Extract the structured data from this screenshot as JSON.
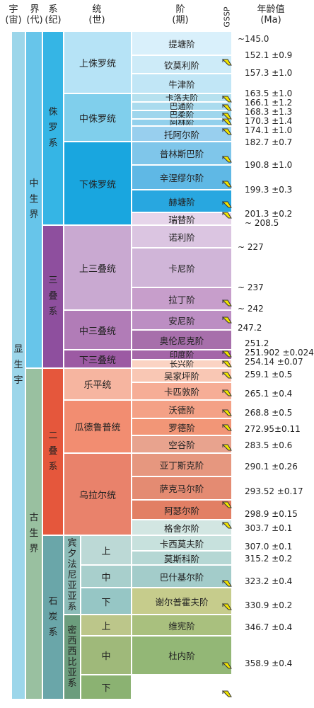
{
  "header": {
    "eonothem": {
      "l1": "宇",
      "l2": "(宙)"
    },
    "erathem": {
      "l1": "界",
      "l2": "(代)"
    },
    "system": {
      "l1": "系",
      "l2": "(纪)"
    },
    "series": {
      "l1": "统",
      "l2": "(世)"
    },
    "stage": {
      "l1": "阶",
      "l2": "(期)"
    },
    "gssp": "GSSP",
    "age": {
      "l1": "年龄值",
      "l2": "(Ma)"
    }
  },
  "eon": {
    "label": "显生宇",
    "color": "#9cd6ea"
  },
  "eras": [
    {
      "id": "mesozoic",
      "label": "中生界",
      "color": "#67c5ea"
    },
    {
      "id": "paleozoic",
      "label": "古生界",
      "color": "#99c0a0"
    }
  ],
  "systems": [
    {
      "id": "jurassic",
      "label": "侏罗系",
      "color": "#35b5e5"
    },
    {
      "id": "triassic",
      "label": "三叠系",
      "color": "#8e4f9e"
    },
    {
      "id": "permian",
      "label": "二叠系",
      "color": "#e5573c"
    },
    {
      "id": "carboniferous",
      "label": "石炭系",
      "color": "#6aa6a9"
    }
  ],
  "subsystems": [
    {
      "id": "pennsylvanian",
      "label": "宾夕法尼亚亚系",
      "color": "#8cbcb8"
    },
    {
      "id": "mississippian",
      "label": "密西西比亚系",
      "color": "#6c9d7d"
    }
  ],
  "series": [
    {
      "id": "upper-jurassic",
      "label": "上侏罗统",
      "color": "#b6e3f6"
    },
    {
      "id": "middle-jurassic",
      "label": "中侏罗统",
      "color": "#80cfec"
    },
    {
      "id": "lower-jurassic",
      "label": "下侏罗统",
      "color": "#19a6df"
    },
    {
      "id": "upper-triassic",
      "label": "上三叠统",
      "color": "#c9a9d1"
    },
    {
      "id": "middle-triassic",
      "label": "中三叠统",
      "color": "#b17cb7"
    },
    {
      "id": "lower-triassic",
      "label": "下三叠统",
      "color": "#9c5aa3"
    },
    {
      "id": "lopingian",
      "label": "乐平统",
      "color": "#f6b5a0"
    },
    {
      "id": "guadalupian",
      "label": "瓜德鲁普统",
      "color": "#f28d71"
    },
    {
      "id": "cisuralian",
      "label": "乌拉尔统",
      "color": "#e9826b"
    },
    {
      "id": "upper-penn",
      "label": "上",
      "color": "#bcd9d6"
    },
    {
      "id": "middle-penn",
      "label": "中",
      "color": "#a8cfcc"
    },
    {
      "id": "lower-penn",
      "label": "下",
      "color": "#96c6c5"
    },
    {
      "id": "upper-miss",
      "label": "上",
      "color": "#bcc68a"
    },
    {
      "id": "middle-miss",
      "label": "中",
      "color": "#9fb97a"
    },
    {
      "id": "lower-miss",
      "label": "下",
      "color": "#8bb272"
    }
  ],
  "stages": [
    {
      "label": "提塘阶",
      "color": "#d9f0fb"
    },
    {
      "label": "钦莫利阶",
      "color": "#cdebf8"
    },
    {
      "label": "牛津阶",
      "color": "#c1e6f6"
    },
    {
      "label": "卡洛夫阶",
      "color": "#b6e1ef"
    },
    {
      "label": "巴通阶",
      "color": "#aadbee"
    },
    {
      "label": "巴柔阶",
      "color": "#9ed6ed"
    },
    {
      "label": "阿林阶",
      "color": "#92d0ec"
    },
    {
      "label": "托阿尔阶",
      "color": "#98cfee"
    },
    {
      "label": "普林斯巴阶",
      "color": "#7fc6ea"
    },
    {
      "label": "辛涅缪尔阶",
      "color": "#5fb8e5"
    },
    {
      "label": "赫塘阶",
      "color": "#28a7e0"
    },
    {
      "label": "瑞替阶",
      "color": "#e6d5ea"
    },
    {
      "label": "诺利阶",
      "color": "#dbc5e1"
    },
    {
      "label": "卡尼阶",
      "color": "#d0b5d8"
    },
    {
      "label": "拉丁阶",
      "color": "#c79ecb"
    },
    {
      "label": "安尼阶",
      "color": "#bc8ec3"
    },
    {
      "label": "奥伦尼克阶",
      "color": "#a76fab"
    },
    {
      "label": "印度阶",
      "color": "#a466a8"
    },
    {
      "label": "长兴阶",
      "color": "#fbd3c3"
    },
    {
      "label": "吴家坪阶",
      "color": "#f9c7b4"
    },
    {
      "label": "卡匹敦阶",
      "color": "#f6ad96"
    },
    {
      "label": "沃德阶",
      "color": "#f4a186"
    },
    {
      "label": "罗德阶",
      "color": "#f29677"
    },
    {
      "label": "空谷阶",
      "color": "#e8a38e"
    },
    {
      "label": "亚丁斯克阶",
      "color": "#e6977f"
    },
    {
      "label": "萨克马尔阶",
      "color": "#e48b72"
    },
    {
      "label": "阿瑟尔阶",
      "color": "#e27f64"
    },
    {
      "label": "格舍尔阶",
      "color": "#d2e6e2"
    },
    {
      "label": "卡西莫夫阶",
      "color": "#c7e1dd"
    },
    {
      "label": "莫斯科阶",
      "color": "#b5d7d4"
    },
    {
      "label": "巴什基尔阶",
      "color": "#a3ccca"
    },
    {
      "label": "谢尔普霍夫阶",
      "color": "#c6cc8c"
    },
    {
      "label": "维宪阶",
      "color": "#a9c07e"
    },
    {
      "label": "杜内阶",
      "color": "#93b776"
    }
  ],
  "ages": [
    "~145.0",
    "152.1 ±0.9",
    "157.3 ±1.0",
    "163.5 ±1.0",
    "166.1 ±1.2",
    "168.3 ±1.3",
    "170.3 ±1.4",
    "174.1 ±1.0",
    "182.7 ±0.7",
    "190.8 ±1.0",
    "199.3 ±0.3",
    "201.3 ±0.2",
    "~ 208.5",
    "~ 227",
    "~ 237",
    "~ 242",
    "247.2",
    "251.2",
    "251.902 ±0.024",
    "254.14 ±0.07",
    "259.1 ±0.5",
    "265.1 ±0.4",
    "268.8 ±0.5",
    "272.95±0.11",
    "283.5 ±0.6",
    "290.1 ±0.26",
    "293.52 ±0.17",
    "298.9 ±0.15",
    "303.7 ±0.1",
    "307.0 ±0.1",
    "315.2 ±0.2",
    "323.2 ±0.4",
    "330.9 ±0.2",
    "346.7 ±0.4",
    "358.9 ±0.4"
  ],
  "colors": {
    "gssp_spike": "#f2e500",
    "gssp_outline": "#333333"
  }
}
